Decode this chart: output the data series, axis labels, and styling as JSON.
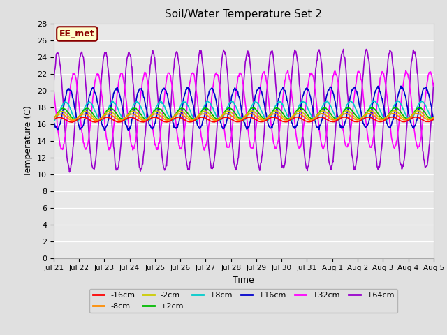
{
  "title": "Soil/Water Temperature Set 2",
  "xlabel": "Time",
  "ylabel": "Temperature (C)",
  "ylim": [
    0,
    28
  ],
  "yticks": [
    0,
    2,
    4,
    6,
    8,
    10,
    12,
    14,
    16,
    18,
    20,
    22,
    24,
    26,
    28
  ],
  "x_labels": [
    "Jul 21",
    "Jul 22",
    "Jul 23",
    "Jul 24",
    "Jul 25",
    "Jul 26",
    "Jul 27",
    "Jul 28",
    "Jul 29",
    "Jul 30",
    "Jul 31",
    "Aug 1",
    "Aug 2",
    "Aug 3",
    "Aug 4",
    "Aug 5"
  ],
  "bg_color": "#e0e0e0",
  "plot_bg_color": "#e8e8e8",
  "annotation_text": "EE_met",
  "annotation_bg": "#ffffcc",
  "annotation_border": "#8b0000",
  "series_order": [
    "+64cm",
    "+32cm",
    "+16cm",
    "+8cm",
    "+2cm",
    "-2cm",
    "-8cm",
    "-16cm"
  ],
  "legend_order": [
    "-16cm",
    "-8cm",
    "-2cm",
    "+2cm",
    "+8cm",
    "+16cm",
    "+32cm",
    "+64cm"
  ],
  "series": {
    "-16cm": {
      "color": "#ff0000",
      "amplitude": 0.28,
      "base": 16.5,
      "phase": 0.0,
      "trend": 0.003
    },
    "-8cm": {
      "color": "#ff8c00",
      "amplitude": 0.38,
      "base": 16.8,
      "phase": 0.1,
      "trend": 0.004
    },
    "-2cm": {
      "color": "#cccc00",
      "amplitude": 0.5,
      "base": 17.0,
      "phase": 0.2,
      "trend": 0.005
    },
    "+2cm": {
      "color": "#00bb00",
      "amplitude": 0.65,
      "base": 17.2,
      "phase": 0.3,
      "trend": 0.006
    },
    "+8cm": {
      "color": "#00cccc",
      "amplitude": 1.1,
      "base": 17.5,
      "phase": 0.5,
      "trend": 0.008
    },
    "+16cm": {
      "color": "#0000cc",
      "amplitude": 2.4,
      "base": 17.8,
      "phase": 0.8,
      "trend": 0.012
    },
    "+32cm": {
      "color": "#ff00ff",
      "amplitude": 4.5,
      "base": 17.5,
      "phase": 1.2,
      "trend": 0.015
    },
    "+64cm": {
      "color": "#9900cc",
      "amplitude": 7.0,
      "base": 17.5,
      "phase": 1.85,
      "trend": 0.018
    }
  }
}
